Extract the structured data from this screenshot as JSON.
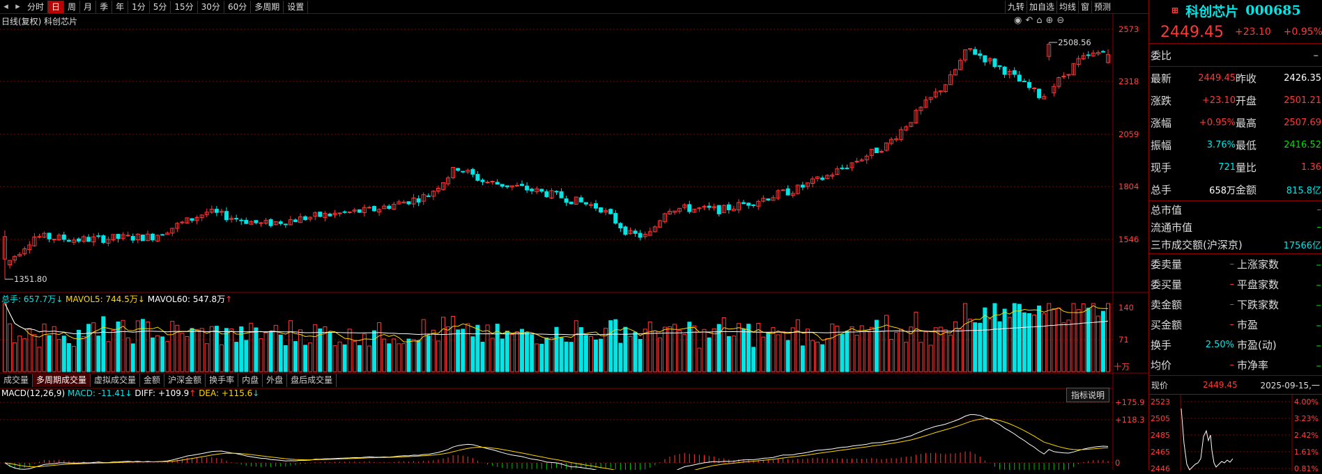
{
  "period_tabs": [
    "分时",
    "日",
    "周",
    "月",
    "季",
    "年",
    "1分",
    "5分",
    "15分",
    "30分",
    "60分",
    "多周期",
    "设置"
  ],
  "active_period": "日",
  "right_tools": [
    "九转",
    "加自选",
    "均线",
    "窗",
    "预测"
  ],
  "chart_title": "日线(复权)  科创芯片",
  "price_axis": [
    "2573",
    "2318",
    "2059",
    "1804",
    "1546"
  ],
  "high_marker": "2508.56",
  "low_marker": "1351.80",
  "vol_header": {
    "total_label": "总手: 657.7万",
    "mavol5": "MAVOL5: 744.5万",
    "mavol60": "MAVOL60: 547.8万"
  },
  "vol_axis": [
    "140",
    "71",
    "十万"
  ],
  "vol_tabs": [
    "成交量",
    "多周期成交量",
    "虚拟成交量",
    "金额",
    "沪深金额",
    "换手率",
    "内盘",
    "外盘",
    "盘后成交量"
  ],
  "active_vol_tab": "多周期成交量",
  "macd_header": {
    "name": "MACD(12,26,9)",
    "macd": "MACD: -11.41",
    "diff": "DIFF: +109.9",
    "dea": "DEA: +115.6"
  },
  "macd_button": "指标说明",
  "macd_axis": [
    "+175.9",
    "+118.3",
    "0"
  ],
  "stock": {
    "name": "科创芯片",
    "code": "000685",
    "price": "2449.45",
    "change": "+23.10",
    "change_pct": "+0.95%"
  },
  "quote": {
    "weibi_label": "委比",
    "weibi_value": "–",
    "rows": [
      {
        "l1": "最新",
        "v1": "2449.45",
        "c1": "red",
        "l2": "昨收",
        "v2": "2426.35",
        "c2": "white"
      },
      {
        "l1": "涨跌",
        "v1": "+23.10",
        "c1": "red",
        "l2": "开盘",
        "v2": "2501.21",
        "c2": "red"
      },
      {
        "l1": "涨幅",
        "v1": "+0.95%",
        "c1": "red",
        "l2": "最高",
        "v2": "2507.69",
        "c2": "red"
      },
      {
        "l1": "振幅",
        "v1": "3.76%",
        "c1": "cyan",
        "l2": "最低",
        "v2": "2416.52",
        "c2": "green"
      },
      {
        "l1": "现手",
        "v1": "721",
        "c1": "cyan",
        "l2": "量比",
        "v2": "1.36",
        "c2": "red"
      },
      {
        "l1": "总手",
        "v1": "658万",
        "c1": "white",
        "l2": "金额",
        "v2": "815.8亿",
        "c2": "cyan"
      }
    ]
  },
  "market": [
    {
      "label": "总市值",
      "value": "–"
    },
    {
      "label": "流通市值",
      "value": "–"
    },
    {
      "label": "三市成交额(沪深京)",
      "value": "17566亿"
    }
  ],
  "orders": [
    {
      "l1": "委卖量",
      "v1": "–",
      "l2": "上涨家数",
      "v2": "–"
    },
    {
      "l1": "委买量",
      "v1": "–",
      "l2": "平盘家数",
      "v2": "–"
    },
    {
      "l1": "卖金额",
      "v1": "–",
      "l2": "下跌家数",
      "v2": "–"
    },
    {
      "l1": "买金额",
      "v1": "–",
      "l2": "市盈",
      "v2": "–"
    },
    {
      "l1": "换手",
      "v1": "2.50%",
      "l2": "市盈(动)",
      "v2": "–"
    },
    {
      "l1": "均价",
      "v1": "–",
      "l2": "市净率",
      "v2": "–"
    }
  ],
  "mini": {
    "label": "现价",
    "price": "2449.45",
    "date": "2025-09-15,一",
    "left_axis": [
      "2523",
      "2505",
      "2485",
      "2465",
      "2446"
    ],
    "right_axis": [
      "4.00%",
      "3.23%",
      "2.42%",
      "1.61%",
      "0.81%"
    ]
  },
  "colors": {
    "up": "#ff3838",
    "down": "#00e6e6",
    "ma5": "#ffffff",
    "ma10": "#ffd700",
    "grid": "#8b0000"
  },
  "icons": [
    "back-icon",
    "forward-icon",
    "eye-icon",
    "undo-icon",
    "lock-icon",
    "zoom-in-icon",
    "zoom-out-icon"
  ]
}
